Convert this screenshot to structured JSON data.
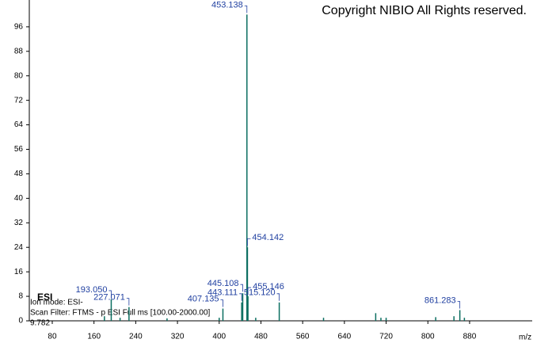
{
  "chart_data": {
    "type": "spectrum",
    "title": "Copyright NIBIO All Rights reserved.",
    "annotations": [
      "ESI",
      "Ion mode: ESI-",
      "Scan Filter: FTMS - p ESI Full ms [100.00-2000.00]",
      "9.782"
    ],
    "x_label": "m/z",
    "x": [
      180,
      193.05,
      210,
      227.071,
      300,
      400,
      407.135,
      443.111,
      445.108,
      453.138,
      454.142,
      455.146,
      470,
      515.12,
      600,
      700,
      710,
      720,
      815,
      850,
      861.283,
      870
    ],
    "x_labels": [
      null,
      "193.050",
      null,
      "227.071",
      null,
      null,
      "407.135",
      "443.111",
      "445.108",
      "453.138",
      "454.142",
      "455.146",
      null,
      "515.120",
      null,
      null,
      null,
      null,
      null,
      null,
      "861.283",
      null
    ],
    "values": [
      1.5,
      7,
      1,
      4.5,
      0.8,
      1,
      4,
      6,
      9,
      100,
      24,
      8,
      1,
      6,
      1,
      2.5,
      1,
      1,
      1.2,
      1.5,
      3.5,
      1
    ],
    "color": "#0b6e60",
    "label_color": "#1f3fa0",
    "xlim": [
      36,
      1000
    ],
    "xticks": [
      80,
      160,
      240,
      320,
      400,
      480,
      560,
      640,
      720,
      800,
      880
    ],
    "ylim": [
      0,
      100
    ],
    "yticks": [
      0,
      8,
      16,
      24,
      32,
      40,
      48,
      56,
      64,
      72,
      80,
      88,
      96
    ]
  }
}
